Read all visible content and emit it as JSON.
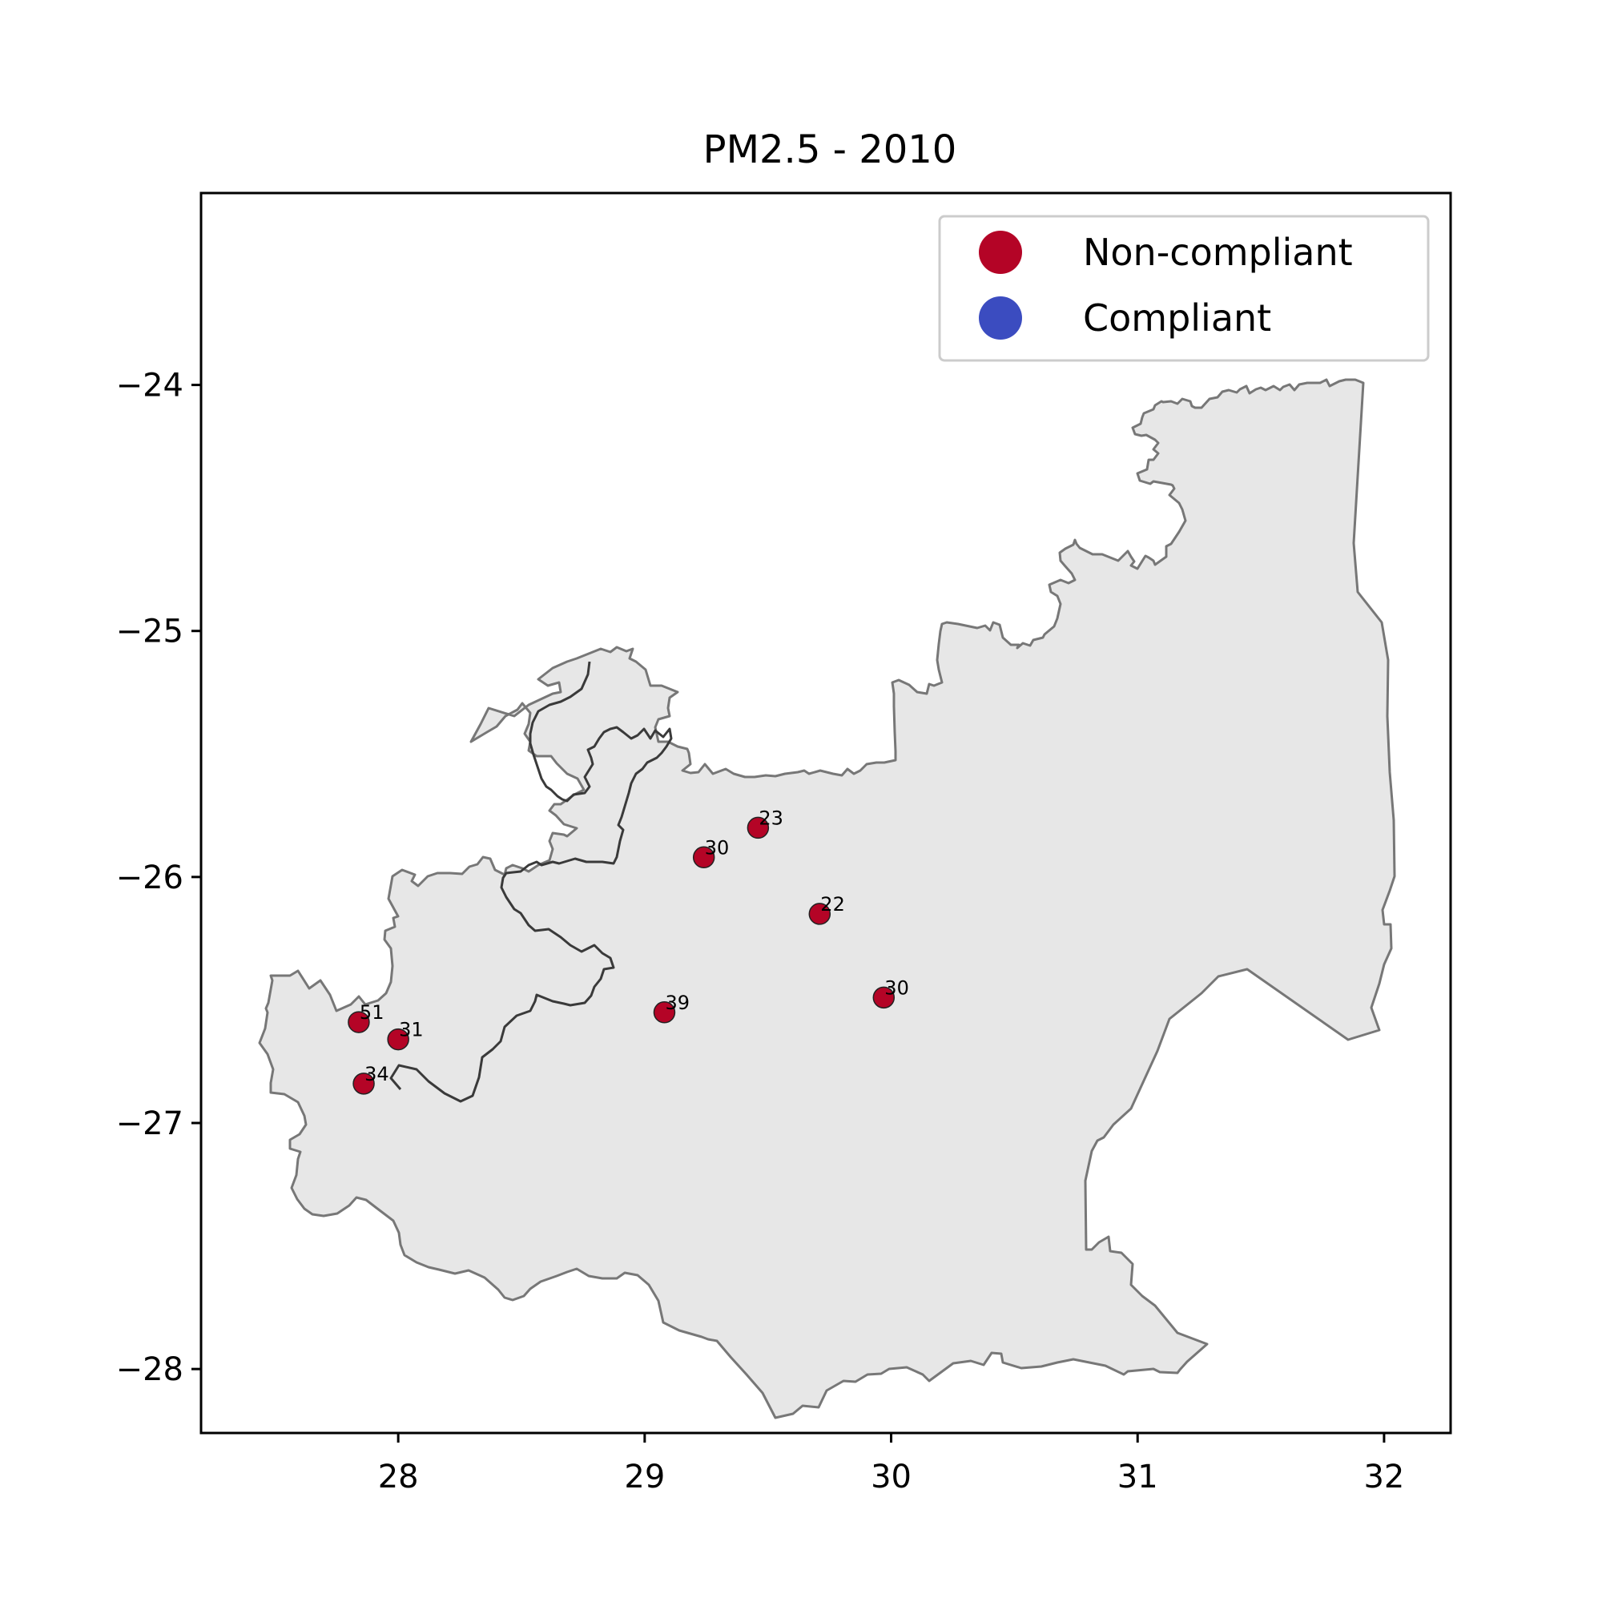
{
  "title": "PM2.5 - 2010",
  "map": {
    "xlim": [
      27.2,
      32.27
    ],
    "ylim": [
      -28.26,
      -23.22
    ],
    "x_ticks": [
      {
        "value": 28,
        "label": "28"
      },
      {
        "value": 29,
        "label": "29"
      },
      {
        "value": 30,
        "label": "30"
      },
      {
        "value": 31,
        "label": "31"
      },
      {
        "value": 32,
        "label": "32"
      }
    ],
    "y_ticks": [
      {
        "value": -24,
        "label": "−24"
      },
      {
        "value": -25,
        "label": "−25"
      },
      {
        "value": -26,
        "label": "−26"
      },
      {
        "value": -27,
        "label": "−27"
      },
      {
        "value": -28,
        "label": "−28"
      }
    ],
    "region_fill": "#e7e7e7",
    "region_edge": "#777777",
    "inner_boundary": "#3a3a3a"
  },
  "legend": {
    "placement": "top-right",
    "items": [
      {
        "label": "Non-compliant",
        "color": "#b40426"
      },
      {
        "label": "Compliant",
        "color": "#3b4cc0"
      }
    ]
  },
  "chart_data": {
    "type": "scatter",
    "title": "PM2.5 - 2010",
    "xlabel": "",
    "ylabel": "",
    "xlim": [
      27.2,
      32.27
    ],
    "ylim": [
      -28.26,
      -23.22
    ],
    "grid": false,
    "legend_placement": "top-right",
    "series": [
      {
        "name": "Non-compliant",
        "color": "#b40426",
        "points": [
          {
            "x": 29.46,
            "y": -25.8,
            "label": "23"
          },
          {
            "x": 29.24,
            "y": -25.92,
            "label": "30"
          },
          {
            "x": 29.71,
            "y": -26.15,
            "label": "22"
          },
          {
            "x": 29.97,
            "y": -26.49,
            "label": "30"
          },
          {
            "x": 29.08,
            "y": -26.55,
            "label": "39"
          },
          {
            "x": 27.84,
            "y": -26.59,
            "label": "51"
          },
          {
            "x": 28.0,
            "y": -26.66,
            "label": "31"
          },
          {
            "x": 27.86,
            "y": -26.84,
            "label": "34"
          }
        ]
      },
      {
        "name": "Compliant",
        "color": "#3b4cc0",
        "points": []
      }
    ]
  }
}
